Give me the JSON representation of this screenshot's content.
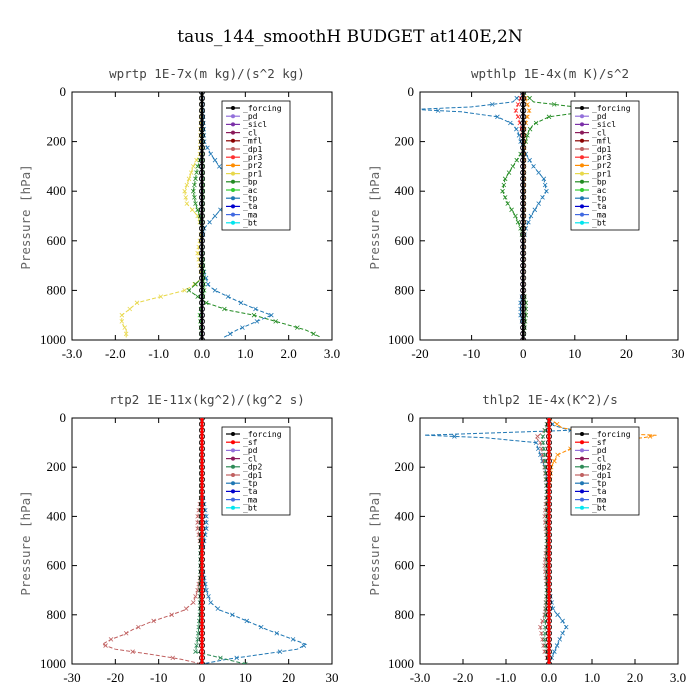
{
  "figure": {
    "title": "taus_144_smoothH  BUDGET at140E,2N"
  },
  "colors": {
    "forcing": "#000000",
    "pd": "#9370db",
    "sicl": "#7b2fa8",
    "cl": "#8b1a5a",
    "mfl": "#8b0000",
    "dp1": "#c06060",
    "pr3": "#ff3030",
    "pr2": "#ff8c00",
    "pr1": "#e8d84a",
    "bp": "#228b22",
    "ac": "#32cd32",
    "tp": "#1f77b4",
    "ta": "#0000cd",
    "ma": "#4169e1",
    "bt": "#00e5ee",
    "sf": "#ff0000",
    "dp2": "#2e8b57"
  },
  "chart_data": [
    {
      "type": "line",
      "title": "wprtp   1E-7x(m kg)/(s^2 kg)",
      "ylabel": "Pressure [hPa]",
      "xlim": [
        -3,
        3
      ],
      "ylim": [
        1000,
        0
      ],
      "xticks": [
        "-3.0",
        "-2.0",
        "-1.0",
        "0.0",
        "1.0",
        "2.0",
        "3.0"
      ],
      "xtick_values": [
        -3,
        -2,
        -1,
        0,
        1,
        2,
        3
      ],
      "yticks": [
        "0",
        "200",
        "400",
        "600",
        "800",
        "1000"
      ],
      "legend": [
        "_forcing",
        "_pd",
        "_sicl",
        "_cl",
        "_mfl",
        "_dp1",
        "_pr3",
        "_pr2",
        "_pr1",
        "_bp",
        "_ac",
        "_tp",
        "_ta",
        "_ma",
        "_bt"
      ],
      "legend_keys": [
        "forcing",
        "pd",
        "sicl",
        "cl",
        "mfl",
        "dp1",
        "pr3",
        "pr2",
        "pr1",
        "bp",
        "ac",
        "tp",
        "ta",
        "ma",
        "bt"
      ],
      "series": [
        {
          "key": "pr1",
          "p": [
            0,
            250,
            300,
            350,
            400,
            450,
            500,
            550,
            600,
            650,
            700,
            750,
            780,
            800,
            850,
            880,
            900,
            930,
            960,
            990
          ],
          "x": [
            0,
            -0.05,
            -0.2,
            -0.3,
            -0.4,
            -0.35,
            -0.1,
            0,
            -0.05,
            -0.1,
            -0.05,
            0,
            -0.2,
            -0.4,
            -1.5,
            -1.7,
            -1.85,
            -1.85,
            -1.75,
            -1.75
          ]
        },
        {
          "key": "bp",
          "p": [
            0,
            250,
            300,
            350,
            400,
            450,
            500,
            550,
            600,
            700,
            750,
            800,
            850,
            880,
            900,
            930,
            960,
            990
          ],
          "x": [
            0,
            0,
            -0.1,
            -0.15,
            -0.2,
            -0.15,
            -0.05,
            0,
            0,
            0,
            0,
            -0.3,
            0.1,
            0.6,
            1.2,
            1.8,
            2.4,
            2.75
          ]
        },
        {
          "key": "tp",
          "p": [
            0,
            200,
            250,
            300,
            350,
            400,
            450,
            500,
            550,
            600,
            700,
            780,
            800,
            850,
            880,
            900,
            930,
            960,
            990
          ],
          "x": [
            0,
            0.05,
            0.2,
            0.4,
            0.6,
            0.7,
            0.55,
            0.3,
            0.05,
            0,
            0,
            0.15,
            0.3,
            0.9,
            1.3,
            1.6,
            1.2,
            0.8,
            0.5
          ]
        },
        {
          "key": "ac",
          "p": [
            0,
            400,
            600,
            800,
            900,
            1000
          ],
          "x": [
            0,
            0.02,
            0,
            0.05,
            -0.05,
            0
          ]
        },
        {
          "key": "pd",
          "p": [
            0,
            1000
          ],
          "x": [
            0,
            0
          ]
        },
        {
          "key": "forcing",
          "p": [
            0,
            1000
          ],
          "x": [
            0,
            0
          ]
        }
      ]
    },
    {
      "type": "line",
      "title": "wpthlp   1E-4x(m K)/s^2",
      "ylabel": "Pressure [hPa]",
      "xlim": [
        -20,
        30
      ],
      "ylim": [
        1000,
        0
      ],
      "xticks": [
        "-20",
        "-10",
        "0",
        "10",
        "20",
        "30"
      ],
      "xtick_values": [
        -20,
        -10,
        0,
        10,
        20,
        30
      ],
      "yticks": [
        "0",
        "200",
        "400",
        "600",
        "800",
        "1000"
      ],
      "legend": [
        "_forcing",
        "_pd",
        "_sicl",
        "_cl",
        "_mfl",
        "_dp1",
        "_pr3",
        "_pr2",
        "_pr1",
        "_bp",
        "_ac",
        "_tp",
        "_ta",
        "_ma",
        "_bt"
      ],
      "legend_keys": [
        "forcing",
        "pd",
        "sicl",
        "cl",
        "mfl",
        "dp1",
        "pr3",
        "pr2",
        "pr1",
        "bp",
        "ac",
        "tp",
        "ta",
        "ma",
        "bt"
      ],
      "series": [
        {
          "key": "tp",
          "p": [
            0,
            40,
            60,
            70,
            80,
            100,
            130,
            160,
            200,
            250,
            300,
            350,
            400,
            450,
            500,
            550,
            600,
            700,
            800,
            850,
            900,
            950,
            1000
          ],
          "x": [
            0,
            -2,
            -10,
            -21,
            -12,
            -5,
            -2,
            -1,
            -0.5,
            0.5,
            2,
            4,
            4.5,
            3,
            1.5,
            0.5,
            0,
            0,
            0,
            -0.5,
            -0.5,
            0,
            0
          ]
        },
        {
          "key": "bp",
          "p": [
            0,
            40,
            60,
            70,
            80,
            100,
            130,
            160,
            200,
            250,
            300,
            350,
            400,
            450,
            500,
            550,
            600,
            700,
            800,
            850,
            900,
            1000
          ],
          "x": [
            0,
            2,
            10,
            20,
            12,
            5,
            2,
            1,
            0.5,
            -0.5,
            -2,
            -3.5,
            -4,
            -3,
            -1.5,
            -0.5,
            0,
            0,
            0,
            0.5,
            0.5,
            0
          ]
        },
        {
          "key": "pr3",
          "p": [
            0,
            50,
            80,
            100,
            150,
            200,
            1000
          ],
          "x": [
            0,
            -1,
            -1.5,
            -1,
            -0.3,
            0,
            0
          ]
        },
        {
          "key": "pr2",
          "p": [
            0,
            60,
            80,
            100,
            150,
            1000
          ],
          "x": [
            0,
            1,
            1.2,
            0.8,
            0.2,
            0
          ]
        },
        {
          "key": "pd",
          "p": [
            0,
            1000
          ],
          "x": [
            0,
            0
          ]
        },
        {
          "key": "forcing",
          "p": [
            0,
            1000
          ],
          "x": [
            0,
            0
          ]
        }
      ]
    },
    {
      "type": "line",
      "title": "rtp2   1E-11x(kg^2)/(kg^2 s)",
      "ylabel": "Pressure [hPa]",
      "xlim": [
        -30,
        30
      ],
      "ylim": [
        1000,
        0
      ],
      "xticks": [
        "-30",
        "-20",
        "-10",
        "0",
        "10",
        "20",
        "30"
      ],
      "xtick_values": [
        -30,
        -20,
        -10,
        0,
        10,
        20,
        30
      ],
      "yticks": [
        "0",
        "200",
        "400",
        "600",
        "800",
        "1000"
      ],
      "legend": [
        "_forcing",
        "_sf",
        "_pd",
        "_cl",
        "_dp2",
        "_dp1",
        "_tp",
        "_ta",
        "_ma",
        "_bt"
      ],
      "legend_keys": [
        "forcing",
        "sf",
        "pd",
        "cl",
        "dp2",
        "dp1",
        "tp",
        "ta",
        "ma",
        "bt"
      ],
      "series": [
        {
          "key": "dp1",
          "p": [
            0,
            300,
            350,
            400,
            450,
            500,
            550,
            600,
            650,
            700,
            750,
            780,
            800,
            830,
            860,
            880,
            900,
            920,
            940,
            960,
            980,
            1000
          ],
          "x": [
            0,
            0,
            -0.5,
            -1,
            -1,
            -0.5,
            0,
            0,
            -0.5,
            -1,
            -2,
            -4,
            -7,
            -12,
            -16,
            -18,
            -21,
            -23,
            -20,
            -12,
            -5,
            0
          ]
        },
        {
          "key": "tp",
          "p": [
            0,
            300,
            350,
            400,
            450,
            500,
            550,
            600,
            650,
            700,
            750,
            780,
            800,
            830,
            860,
            880,
            900,
            920,
            940,
            960,
            980,
            1000
          ],
          "x": [
            0,
            0,
            0.5,
            1,
            1,
            0.5,
            0,
            0,
            0.5,
            1,
            2,
            4,
            7,
            11,
            15,
            18,
            21,
            24,
            22,
            14,
            6,
            0
          ]
        },
        {
          "key": "dp2",
          "p": [
            0,
            800,
            900,
            950,
            1000
          ],
          "x": [
            0,
            -0.5,
            -1,
            -1.5,
            10
          ]
        },
        {
          "key": "forcing",
          "p": [
            0,
            1000
          ],
          "x": [
            0,
            0
          ]
        },
        {
          "key": "sf",
          "p": [
            0,
            1000
          ],
          "x": [
            0,
            0
          ]
        }
      ]
    },
    {
      "type": "line",
      "title": "thlp2   1E-4x(K^2)/s",
      "ylabel": "Pressure [hPa]",
      "xlim": [
        -3,
        3
      ],
      "ylim": [
        1000,
        0
      ],
      "xticks": [
        "-3.0",
        "-2.0",
        "-1.0",
        "0.0",
        "1.0",
        "2.0",
        "3.0"
      ],
      "xtick_values": [
        -3,
        -2,
        -1,
        0,
        1,
        2,
        3
      ],
      "yticks": [
        "0",
        "200",
        "400",
        "600",
        "800",
        "1000"
      ],
      "legend": [
        "_forcing",
        "_sf",
        "_pd",
        "_cl",
        "_dp2",
        "_dp1",
        "_tp",
        "_ta",
        "_ma",
        "_bt"
      ],
      "legend_keys": [
        "forcing",
        "sf",
        "pd",
        "cl",
        "dp2",
        "dp1",
        "tp",
        "ta",
        "ma",
        "bt"
      ],
      "series": [
        {
          "key": "tp",
          "p": [
            0,
            30,
            50,
            70,
            80,
            100,
            150,
            200,
            300,
            400,
            500,
            600,
            700,
            780,
            820,
            850,
            880,
            920,
            960,
            1000
          ],
          "x": [
            0,
            0.1,
            0.5,
            -2.9,
            -1.5,
            -0.3,
            -0.2,
            -0.1,
            0,
            0,
            0,
            0,
            0,
            0.1,
            0.3,
            0.4,
            0.3,
            0.2,
            0.1,
            0
          ]
        },
        {
          "key": "pr2",
          "p": [
            0,
            40,
            60,
            70,
            80,
            100,
            150,
            200,
            300,
            1000
          ],
          "x": [
            0,
            0.3,
            1,
            2.5,
            2.2,
            0.8,
            0.2,
            0.05,
            0,
            0
          ]
        },
        {
          "key": "dp1",
          "p": [
            0,
            50,
            80,
            100,
            150,
            200,
            300,
            400,
            500,
            600,
            700,
            800,
            850,
            900,
            950,
            1000
          ],
          "x": [
            0,
            -0.1,
            -0.3,
            -0.2,
            -0.15,
            -0.1,
            -0.05,
            -0.1,
            -0.05,
            -0.1,
            -0.05,
            -0.1,
            -0.2,
            -0.15,
            -0.1,
            0
          ]
        },
        {
          "key": "dp2",
          "p": [
            0,
            80,
            150,
            300,
            500,
            700,
            900,
            1000
          ],
          "x": [
            0,
            -0.15,
            -0.1,
            -0.05,
            -0.05,
            -0.05,
            -0.1,
            0
          ]
        },
        {
          "key": "forcing",
          "p": [
            0,
            1000
          ],
          "x": [
            0,
            0
          ]
        },
        {
          "key": "sf",
          "p": [
            0,
            1000
          ],
          "x": [
            0,
            0
          ]
        }
      ]
    }
  ]
}
